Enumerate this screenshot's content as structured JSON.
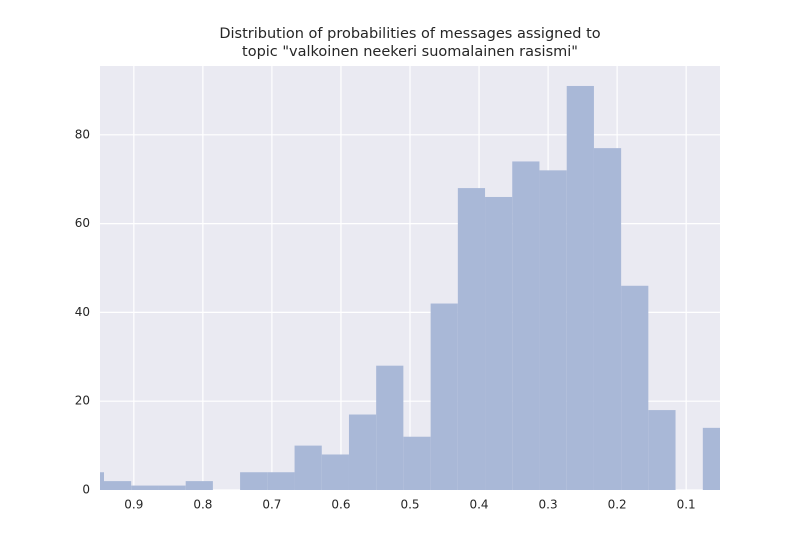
{
  "chart_data": {
    "type": "histogram",
    "title": [
      "Distribution of probabilities of messages assigned to",
      "topic \"valkoinen neekeri suomalainen rasismi\""
    ],
    "bins": [
      0.9826,
      0.9432,
      0.9038,
      0.8643,
      0.8249,
      0.7855,
      0.7461,
      0.7067,
      0.6672,
      0.6278,
      0.5884,
      0.549,
      0.5096,
      0.4701,
      0.4307,
      0.3913,
      0.3519,
      0.3125,
      0.273,
      0.2336,
      0.1942,
      0.1548,
      0.1154,
      0.0759,
      0.0365
    ],
    "values": [
      4,
      2,
      1,
      1,
      2,
      0,
      4,
      4,
      10,
      8,
      17,
      28,
      12,
      42,
      68,
      66,
      74,
      72,
      91,
      77,
      46,
      18,
      0,
      14
    ],
    "color": "#a9b8d7",
    "xlim": [
      0.949,
      0.051
    ],
    "xticks": [
      0.9,
      0.8,
      0.7,
      0.6,
      0.5,
      0.4,
      0.3,
      0.2,
      0.1
    ],
    "ylim": [
      0,
      95.5
    ],
    "yticks": [
      0,
      20,
      40,
      60,
      80
    ],
    "grid": true
  }
}
